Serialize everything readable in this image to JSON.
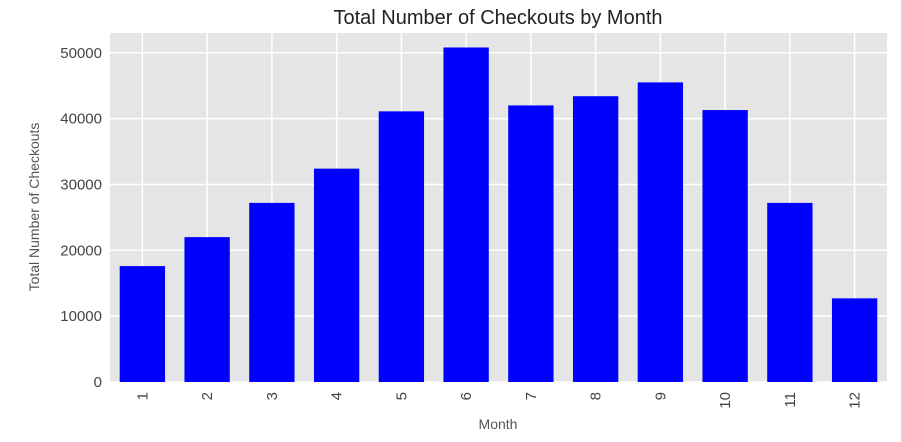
{
  "chart_data": {
    "type": "bar",
    "title": "Total Number of Checkouts by Month",
    "xlabel": "Month",
    "ylabel": "Total Number of Checkouts",
    "categories": [
      "1",
      "2",
      "3",
      "4",
      "5",
      "6",
      "7",
      "8",
      "9",
      "10",
      "11",
      "12"
    ],
    "values": [
      17600,
      22000,
      27200,
      32400,
      41100,
      50800,
      42000,
      43400,
      45500,
      41300,
      27200,
      12700
    ],
    "ylim": [
      0,
      53000
    ],
    "yticks": [
      "0",
      "10000",
      "20000",
      "30000",
      "40000",
      "50000"
    ],
    "grid": true,
    "bar_color": "#0000ff",
    "background_color": "#e5e5e5"
  }
}
